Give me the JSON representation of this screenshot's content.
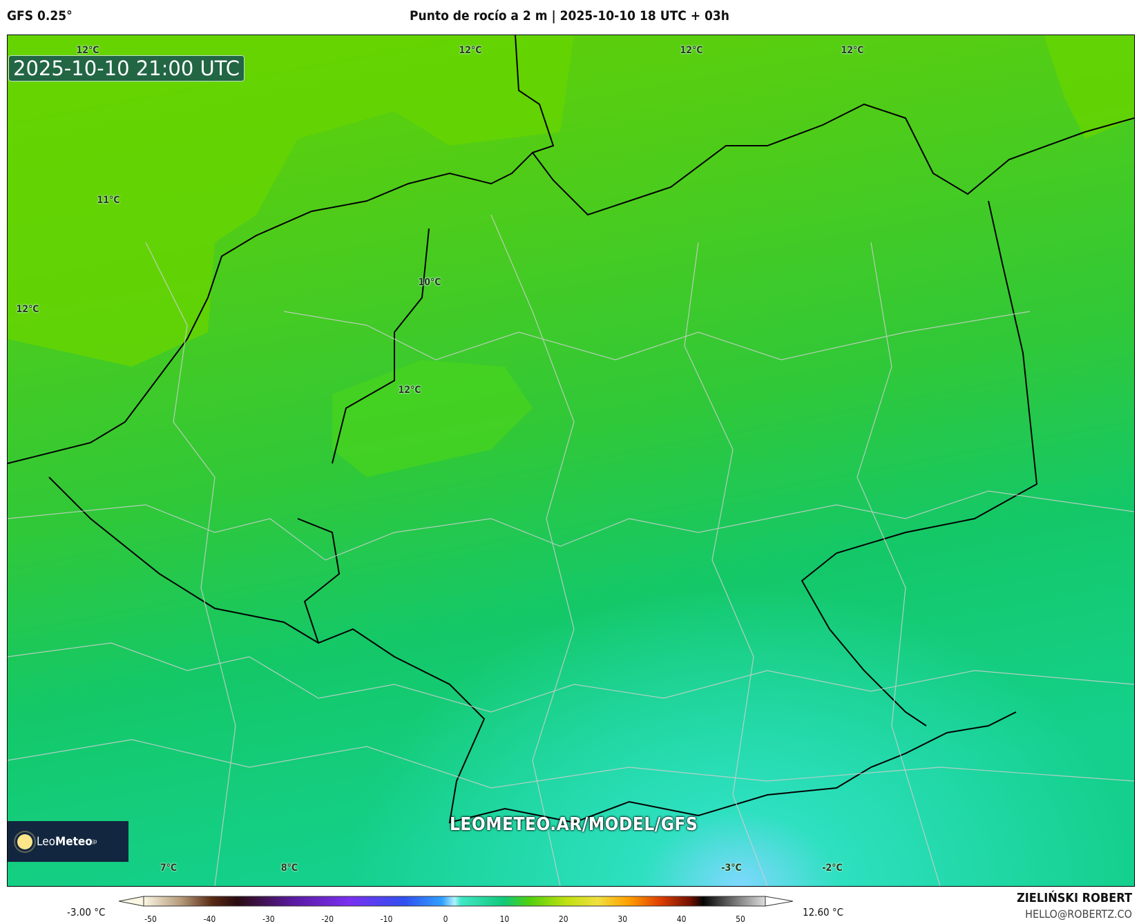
{
  "header": {
    "model": "GFS 0.25°",
    "title": "Punto de rocío a 2 m | 2025-10-10 18 UTC + 03h"
  },
  "map": {
    "valid_time": "2025-10-10 21:00 UTC",
    "watermark": "LEOMETEO.AR/MODEL/GFS",
    "logo": {
      "text_light": "Leo",
      "text_bold": "Meteo",
      "suffix": "jp"
    },
    "contour_labels": [
      "12°C",
      "12°C",
      "12°C",
      "12°C",
      "11°C",
      "12°C",
      "10°C",
      "12°C",
      "7°C",
      "8°C",
      "-3°C",
      "-2°C"
    ],
    "field_colors": {
      "north": "#66d000",
      "center": "#3ccc2c",
      "south": "#12c878",
      "alps": "#30e0b8"
    }
  },
  "colorbar": {
    "min_label": "-3.00 °C",
    "max_label": "12.60 °C",
    "ticks": [
      "-50",
      "-40",
      "-30",
      "-20",
      "-10",
      "0",
      "10",
      "20",
      "30",
      "40",
      "50"
    ]
  },
  "credits": {
    "author": "ZIELIŃSKI ROBERT",
    "email": "HELLO@ROBERTZ.CO"
  }
}
